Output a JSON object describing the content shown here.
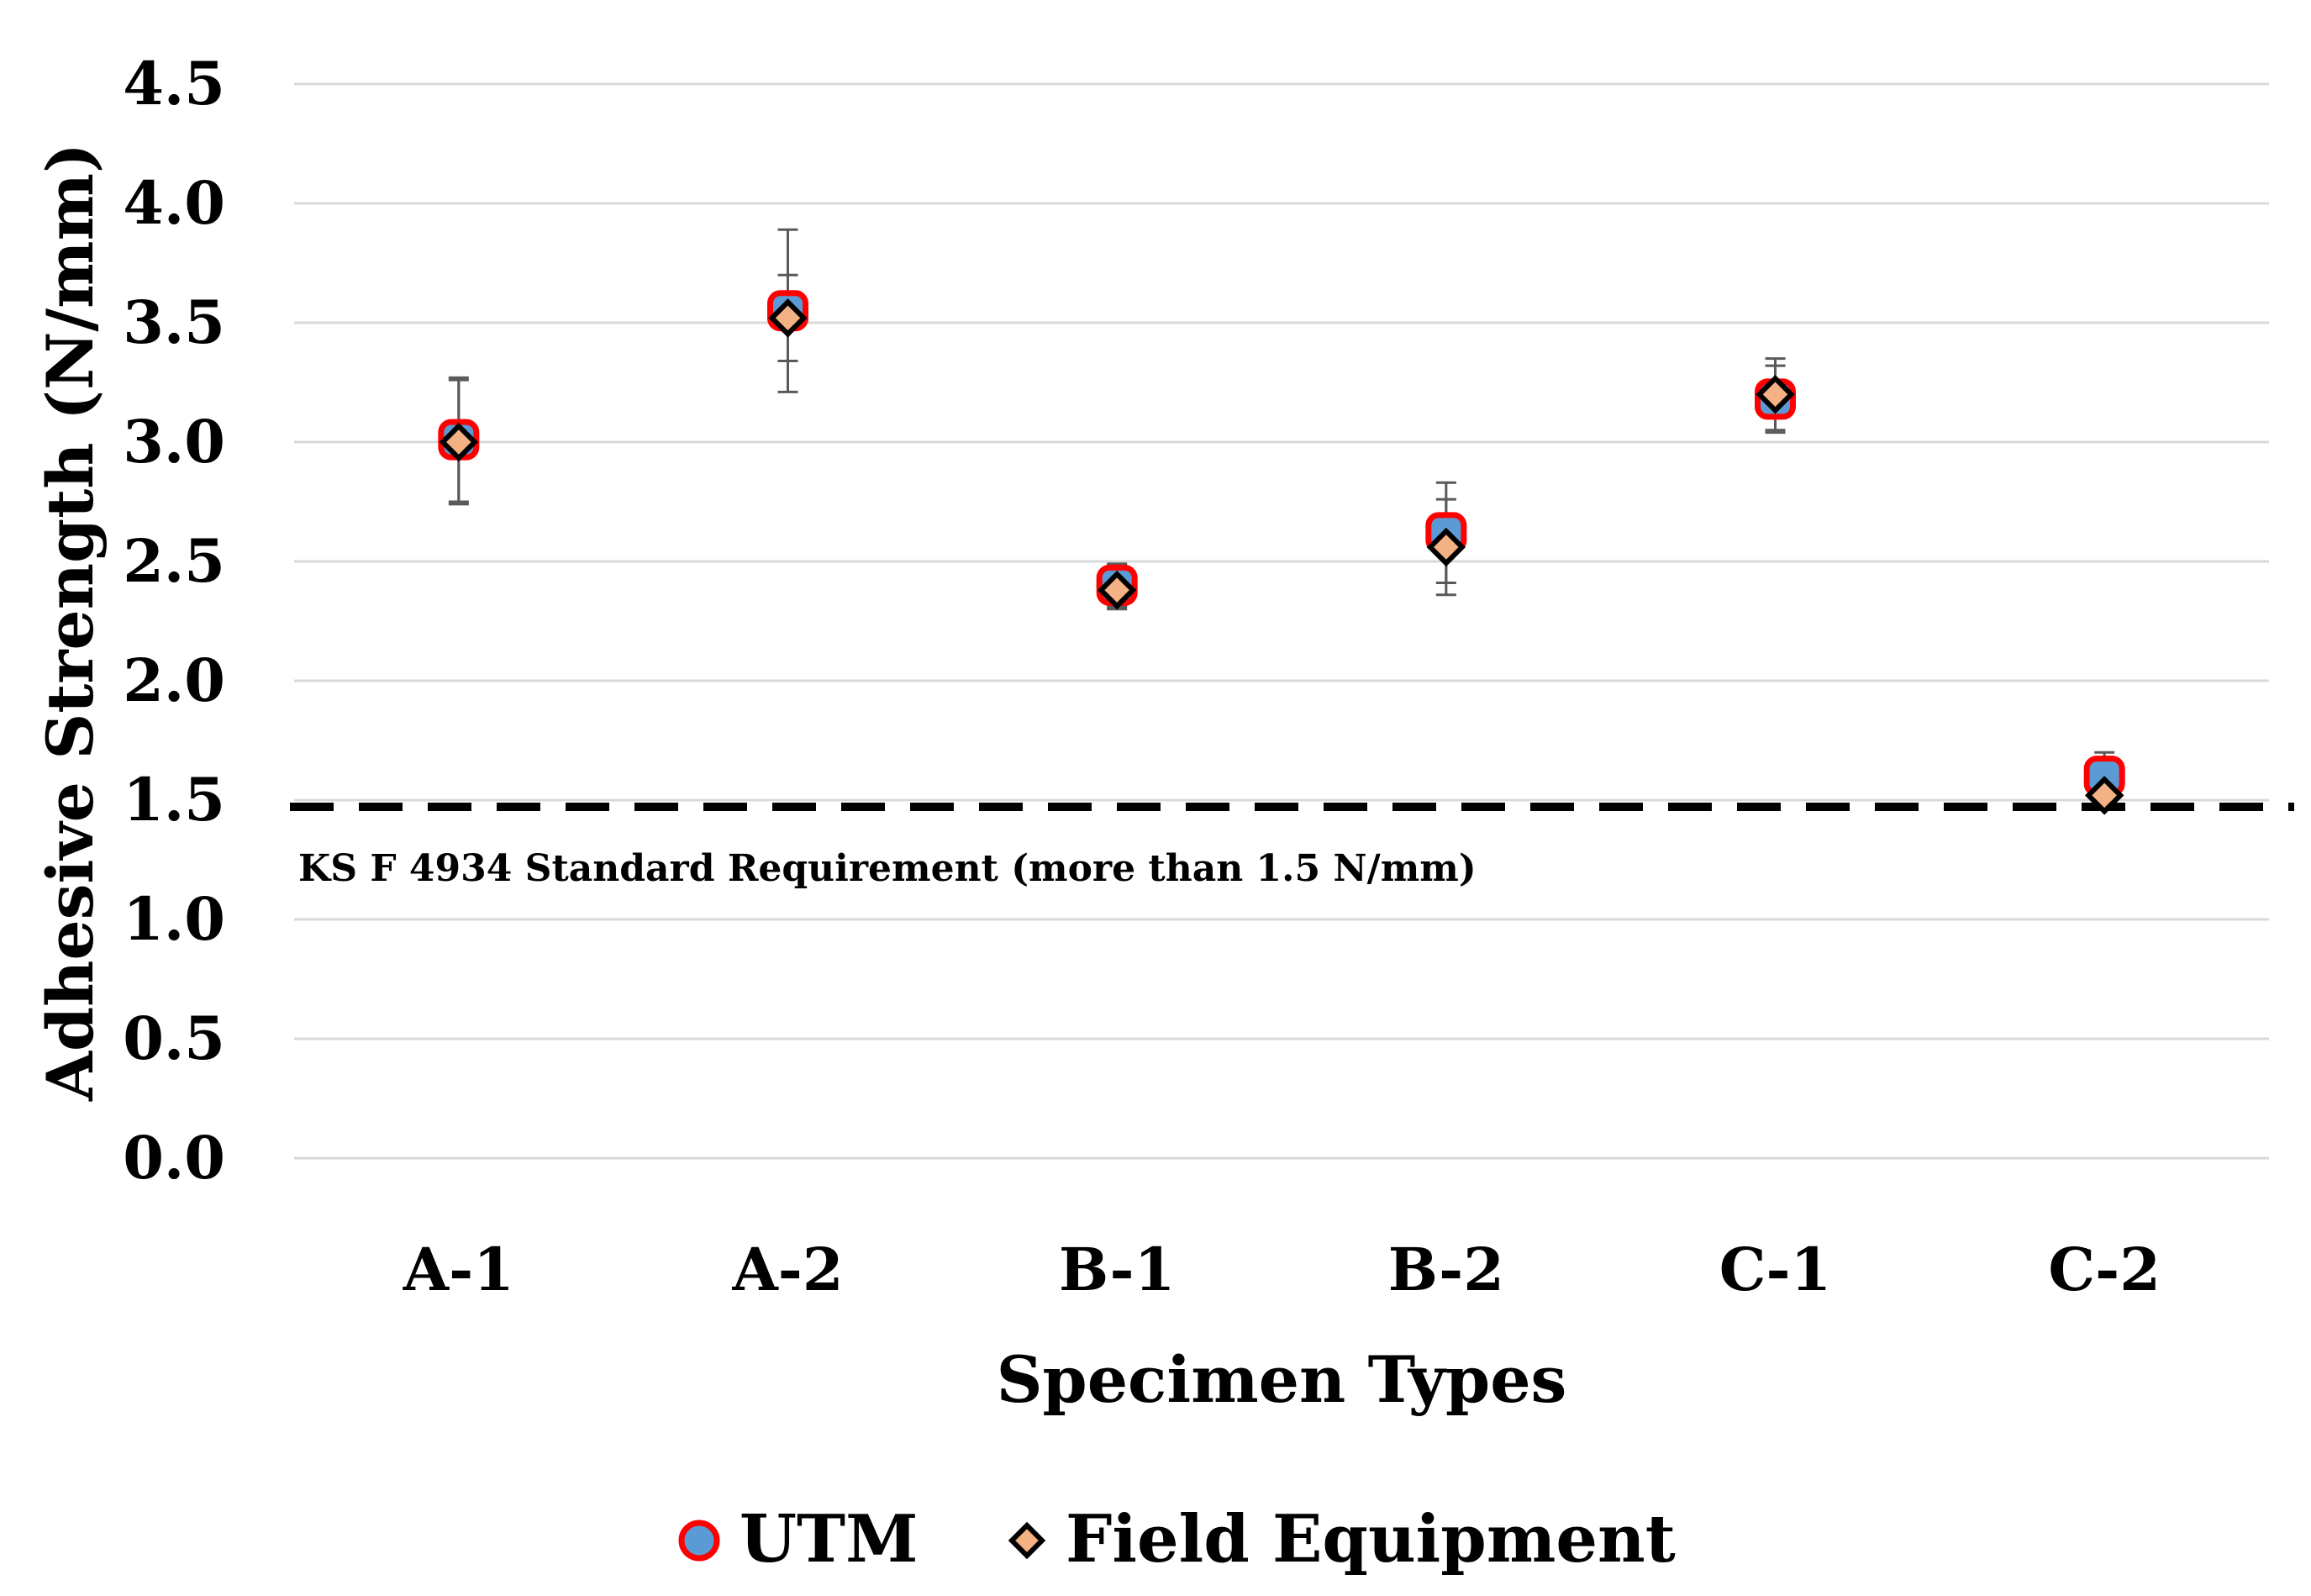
{
  "chart_data": {
    "type": "scatter",
    "xlabel": "Specimen Types",
    "ylabel": "Adhesive Strength (N/mm)",
    "categories": [
      "A-1",
      "A-2",
      "B-1",
      "B-2",
      "C-1",
      "C-2"
    ],
    "ylim": [
      0,
      4.5
    ],
    "yticks": [
      "0.0",
      "0.5",
      "1.0",
      "1.5",
      "2.0",
      "2.5",
      "3.0",
      "3.5",
      "4.0",
      "4.5"
    ],
    "grid": true,
    "series": [
      {
        "name": "UTM",
        "marker": "circle",
        "fill": "#5b9bd5",
        "stroke": "#ff0000",
        "values": [
          3.01,
          3.55,
          2.4,
          2.62,
          3.18,
          1.6
        ],
        "error": [
          0.26,
          0.34,
          0.09,
          0.21,
          0.14,
          0.1
        ]
      },
      {
        "name": "Field Equipment",
        "marker": "diamond",
        "fill": "#f4b183",
        "stroke": "#000000",
        "values": [
          3.0,
          3.52,
          2.38,
          2.56,
          3.2,
          1.52
        ],
        "error": [
          0.26,
          0.18,
          0.08,
          0.2,
          0.15,
          0.03
        ]
      }
    ],
    "reference_line": {
      "value": 1.5,
      "label": "KS F 4934 Standard Requirement (more than 1.5 N/mm)"
    },
    "legend_position": "bottom-center"
  }
}
